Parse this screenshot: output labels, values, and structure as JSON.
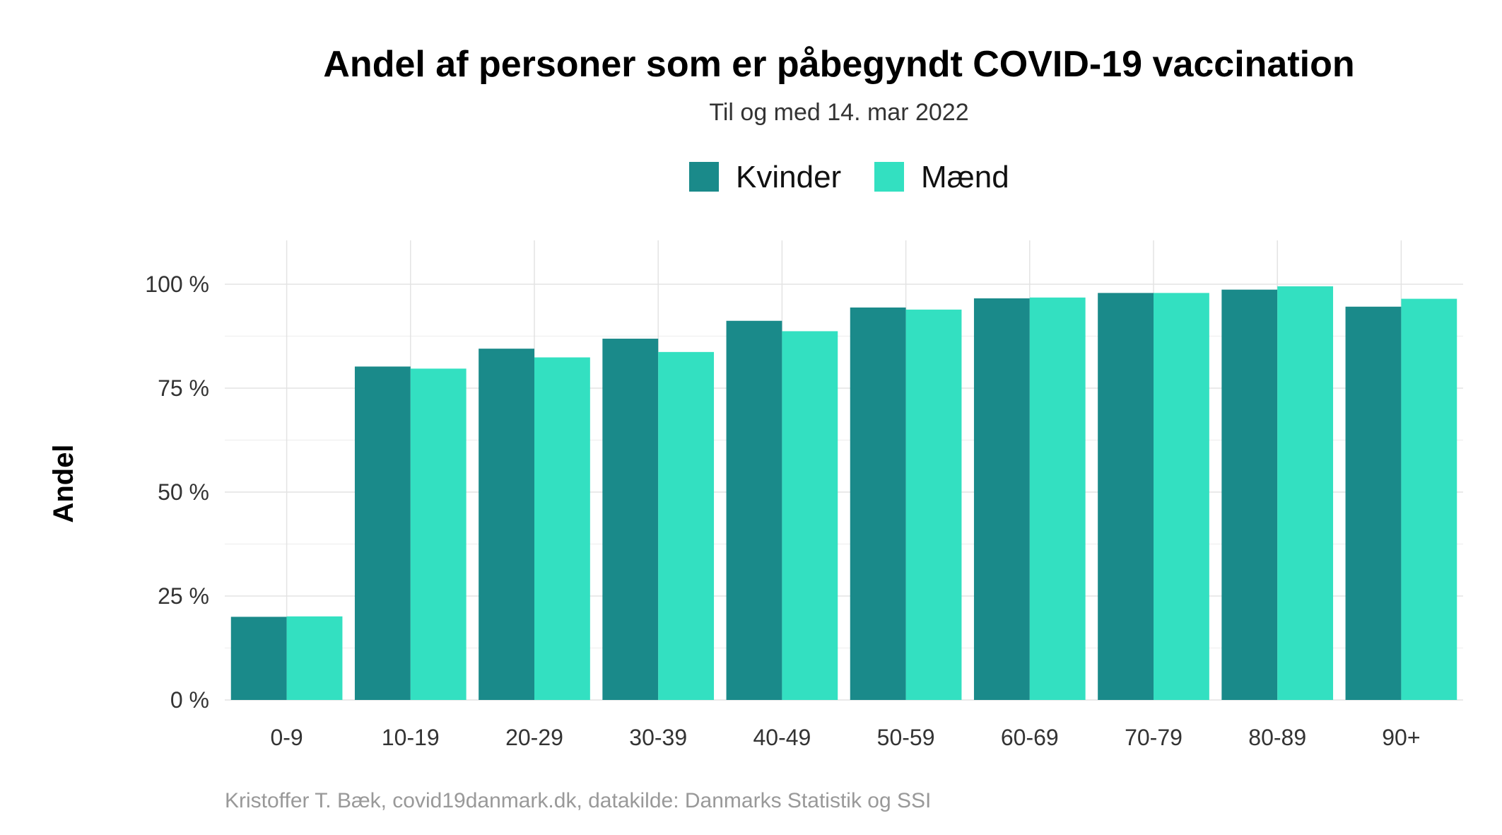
{
  "chart_data": {
    "type": "bar",
    "title": "Andel af personer som er påbegyndt COVID-19 vaccination",
    "subtitle": "Til og med 14. mar 2022",
    "ylabel": "Andel",
    "xlabel": "",
    "caption": "Kristoffer T. Bæk, covid19danmark.dk, datakilde: Danmarks Statistik og SSI",
    "legend_position": "top",
    "ylim": [
      0,
      100
    ],
    "yticks": [
      0,
      25,
      50,
      75,
      100
    ],
    "ytick_suffix": " %",
    "grid": true,
    "categories": [
      "0-9",
      "10-19",
      "20-29",
      "30-39",
      "40-49",
      "50-59",
      "60-69",
      "70-79",
      "80-89",
      "90+"
    ],
    "series": [
      {
        "name": "Kvinder",
        "color": "#1a8a8a",
        "values": [
          20,
          80.2,
          84.5,
          86.9,
          91.2,
          94.4,
          96.6,
          97.9,
          98.7,
          94.6
        ]
      },
      {
        "name": "Mænd",
        "color": "#33e0c1",
        "values": [
          20.1,
          79.7,
          82.4,
          83.7,
          88.7,
          93.9,
          96.8,
          97.9,
          99.5,
          96.5
        ]
      }
    ]
  }
}
